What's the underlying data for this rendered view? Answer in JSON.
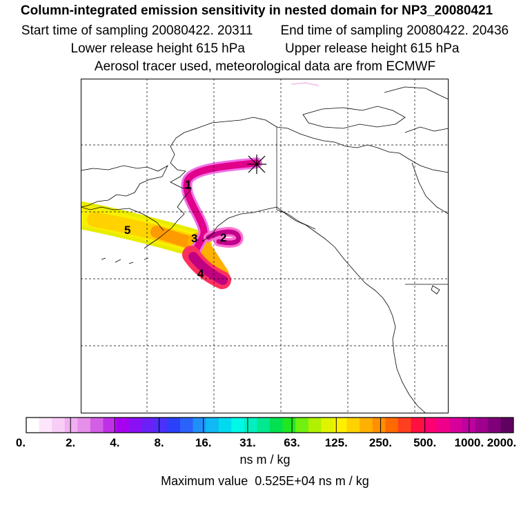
{
  "header": {
    "title": "Column-integrated emission sensitivity in nested domain for NP3_20080421",
    "start_label": "Start time of sampling 20080422. 20311",
    "end_label": "End time of sampling 20080422. 20436",
    "lower_label": "Lower release height  615 hPa",
    "upper_label": "Upper release height  615 hPa",
    "tracer_label": "Aerosol tracer used, meteorological data are from ECMWF"
  },
  "map": {
    "markers": [
      "1",
      "2",
      "3",
      "4",
      "5"
    ],
    "release_point_icon": "asterisk-icon"
  },
  "colorbar": {
    "tick_labels": [
      "0.",
      "2.",
      "4.",
      "8.",
      "16.",
      "31.",
      "63.",
      "125.",
      "250.",
      "500.",
      "1000.",
      "2000."
    ],
    "colors": [
      "#ffffff",
      "#fde6fb",
      "#f8cdf6",
      "#f0b0f0",
      "#e68fe9",
      "#d35fe4",
      "#c030e6",
      "#a800f0",
      "#8a10f4",
      "#6a20f6",
      "#4a30f8",
      "#2a40fa",
      "#2a62fb",
      "#2090f8",
      "#10b8f6",
      "#00daf0",
      "#00f8e8",
      "#00f0c0",
      "#00e890",
      "#00e050",
      "#20e820",
      "#70f010",
      "#b0f000",
      "#e0f400",
      "#fff000",
      "#ffd200",
      "#ffb000",
      "#ff9000",
      "#ff6a00",
      "#ff4020",
      "#ff1040",
      "#ff0070",
      "#f0008a",
      "#d8009a",
      "#c000a0",
      "#a0008e",
      "#80007a",
      "#600060"
    ],
    "units": "ns m / kg",
    "max_label": "Maximum value  0.525E+04 ns m / kg"
  }
}
